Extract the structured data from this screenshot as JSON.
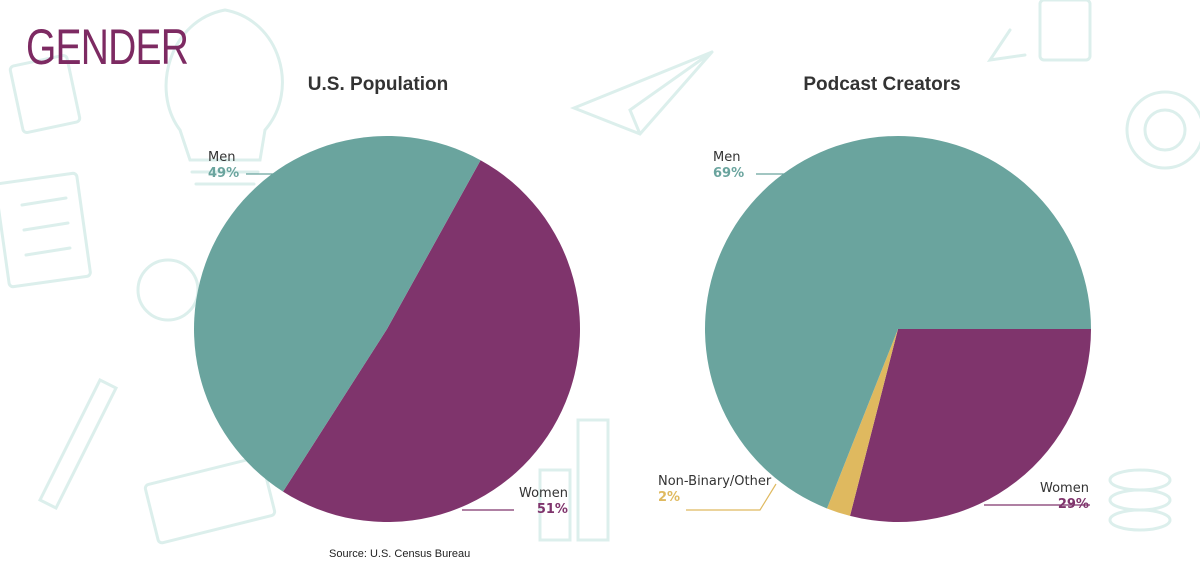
{
  "page": {
    "title": "GENDER"
  },
  "colors": {
    "men": "#6aa49e",
    "women": "#7f346c",
    "nonbinary": "#dfb95f",
    "title": "#7d2a62",
    "decor": "#dcefec"
  },
  "source": "Source: U.S. Census Bureau",
  "chart_data": [
    {
      "type": "pie",
      "title": "U.S. Population",
      "slices": [
        {
          "label": "Men",
          "display": "49%",
          "value": 49,
          "color": "#6aa49e"
        },
        {
          "label": "Women",
          "display": "51%",
          "value": 51,
          "color": "#7f346c"
        }
      ]
    },
    {
      "type": "pie",
      "title": "Podcast Creators",
      "slices": [
        {
          "label": "Men",
          "display": "69%",
          "value": 69,
          "color": "#6aa49e"
        },
        {
          "label": "Women",
          "display": "29%",
          "value": 29,
          "color": "#7f346c"
        },
        {
          "label": "Non-Binary/Other",
          "display": "2%",
          "value": 2,
          "color": "#dfb95f"
        }
      ]
    }
  ]
}
